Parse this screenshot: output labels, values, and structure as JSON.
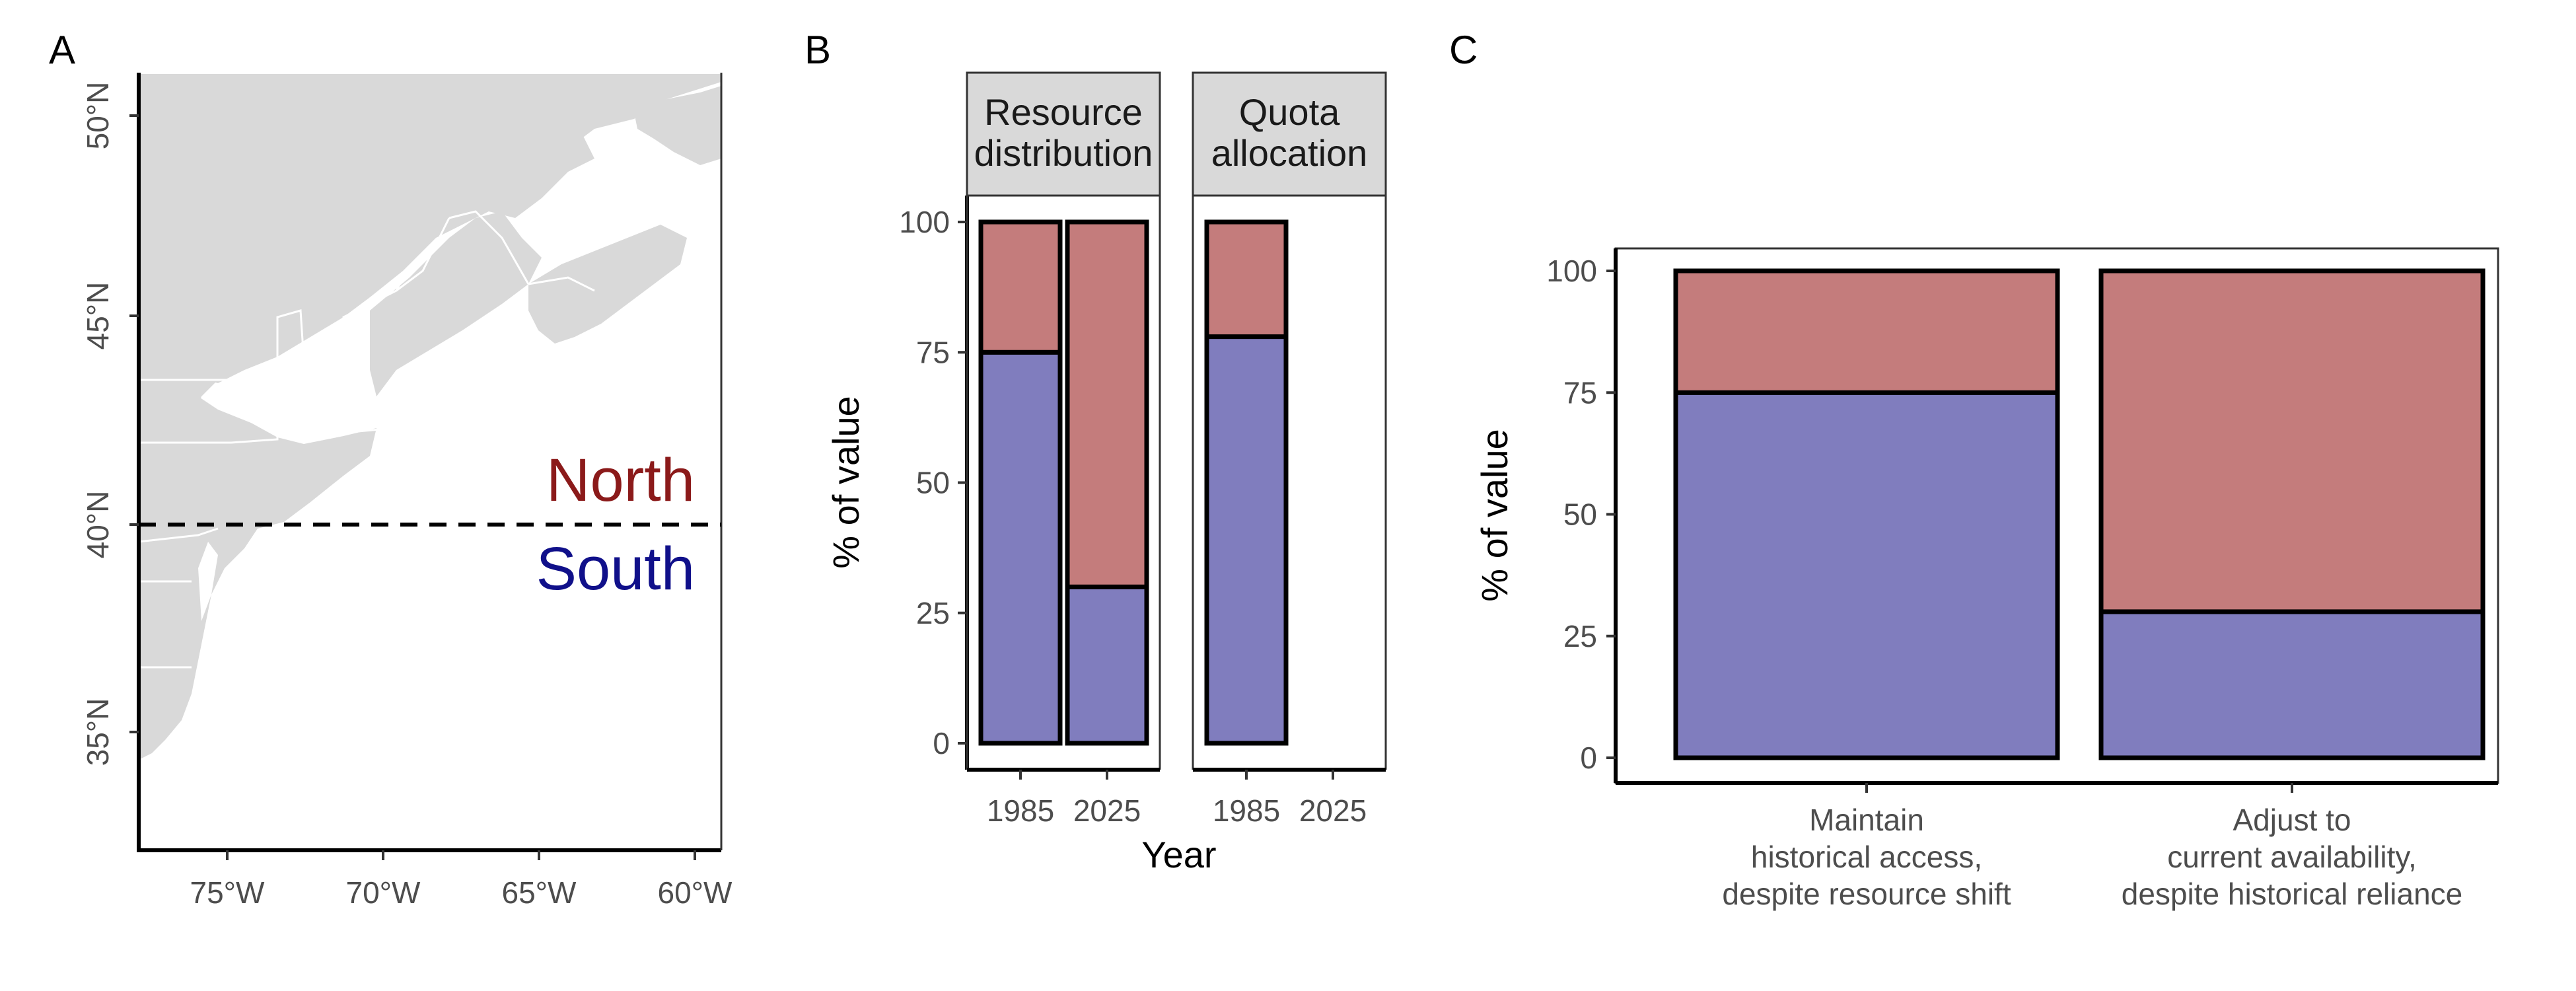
{
  "panels": {
    "a": {
      "letter": "A"
    },
    "b": {
      "letter": "B"
    },
    "c": {
      "letter": "C"
    }
  },
  "colors": {
    "north": "#c47c7c",
    "south": "#807dbe",
    "north_text": "#8b1a1a",
    "south_text": "#10108a",
    "land": "#d9d9d9",
    "border": "#ffffff"
  },
  "map": {
    "lon_ticks": [
      "75°W",
      "70°W",
      "65°W",
      "60°W"
    ],
    "lat_ticks": [
      "50°N",
      "45°N",
      "40°N",
      "35°N"
    ],
    "divider_lat": 40,
    "north_label": "North",
    "south_label": "South"
  },
  "chart_data": [
    {
      "panel": "B",
      "type": "bar",
      "stacked": true,
      "facets": [
        "Resource distribution",
        "Quota allocation"
      ],
      "facet_lines": [
        [
          "Resource",
          "distribution"
        ],
        [
          "Quota",
          "allocation"
        ]
      ],
      "categories": [
        "1985",
        "2025"
      ],
      "xlabel": "Year",
      "ylabel": "% of value",
      "ylim": [
        0,
        100
      ],
      "yticks": [
        "0",
        "25",
        "50",
        "75",
        "100"
      ],
      "series": [
        {
          "region": "South",
          "values": {
            "Resource distribution": [
              75,
              30
            ],
            "Quota allocation": [
              78,
              null
            ]
          }
        },
        {
          "region": "North",
          "values": {
            "Resource distribution": [
              25,
              70
            ],
            "Quota allocation": [
              22,
              null
            ]
          }
        }
      ]
    },
    {
      "panel": "C",
      "type": "bar",
      "stacked": true,
      "categories": [
        [
          "Maintain",
          "historical access,",
          "despite resource shift"
        ],
        [
          "Adjust to",
          "current availability,",
          "despite historical reliance"
        ]
      ],
      "ylabel": "% of value",
      "ylim": [
        0,
        100
      ],
      "yticks": [
        "0",
        "25",
        "50",
        "75",
        "100"
      ],
      "series": [
        {
          "region": "South",
          "values": [
            75,
            30
          ]
        },
        {
          "region": "North",
          "values": [
            25,
            70
          ]
        }
      ]
    }
  ]
}
